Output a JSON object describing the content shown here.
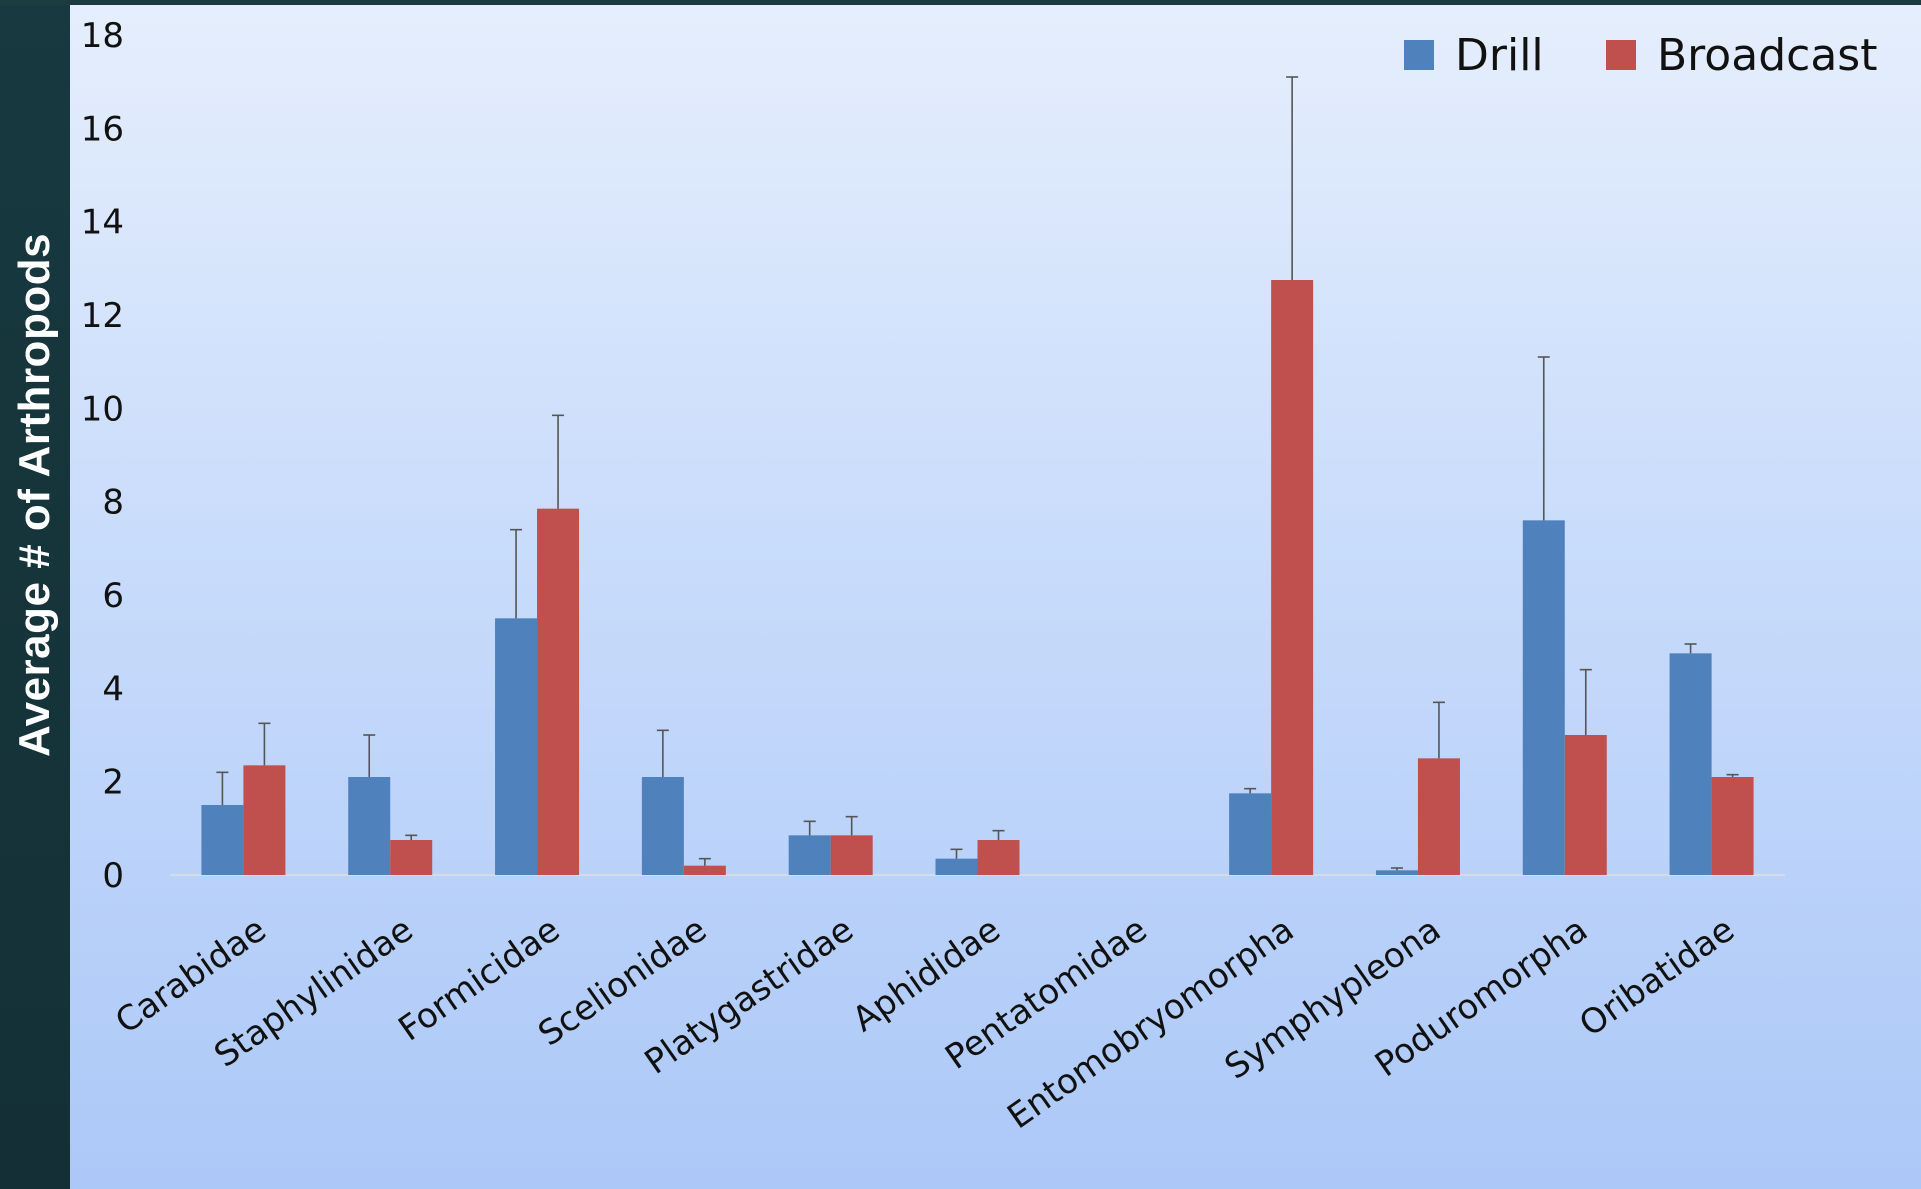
{
  "chart_data": {
    "type": "bar",
    "title": "",
    "xlabel": "",
    "ylabel": "Average # of Arthropods",
    "ylim": [
      0,
      18
    ],
    "yticks": [
      0,
      2,
      4,
      6,
      8,
      10,
      12,
      14,
      16,
      18
    ],
    "grid": false,
    "legend_position": "top-right",
    "categories": [
      "Carabidae",
      "Staphylinidae",
      "Formicidae",
      "Scelionidae",
      "Platygastridae",
      "Aphididae",
      "Pentatomidae",
      "Entomobryomorpha",
      "Symphypleona",
      "Poduromorpha",
      "Oribatidae"
    ],
    "series": [
      {
        "name": "Drill",
        "color": "#4f81bd",
        "values": [
          1.5,
          2.1,
          5.5,
          2.1,
          0.85,
          0.35,
          0,
          1.75,
          0.1,
          7.6,
          4.75
        ],
        "error": [
          0.7,
          0.9,
          1.9,
          1.0,
          0.3,
          0.2,
          0,
          0.1,
          0.05,
          3.5,
          0.2
        ]
      },
      {
        "name": "Broadcast",
        "color": "#c0504d",
        "values": [
          2.35,
          0.75,
          7.85,
          0.2,
          0.85,
          0.75,
          0,
          12.75,
          2.5,
          3.0,
          2.1
        ],
        "error": [
          0.9,
          0.1,
          2.0,
          0.15,
          0.4,
          0.2,
          0,
          4.35,
          1.2,
          1.4,
          0.05
        ]
      }
    ]
  }
}
